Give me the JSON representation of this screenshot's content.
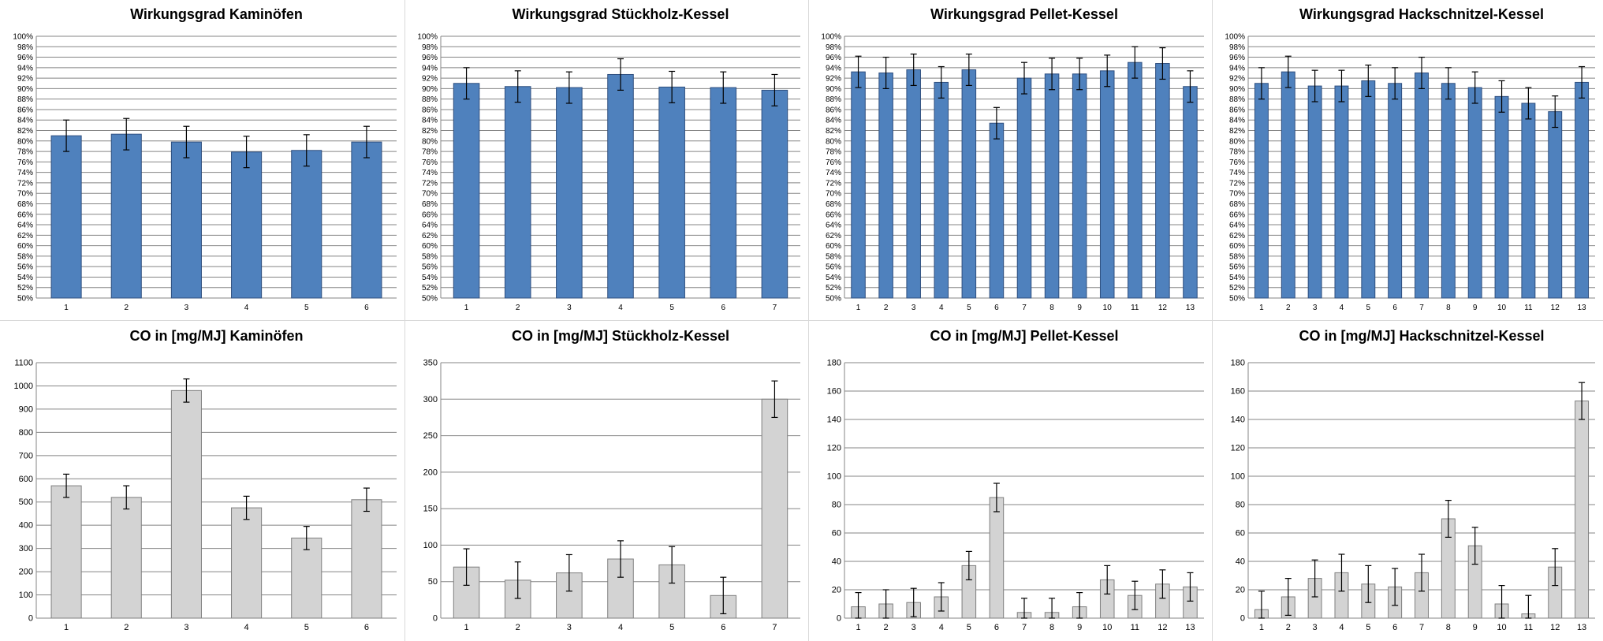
{
  "chart_data": [
    {
      "type": "bar",
      "title": "Wirkungsgrad Kaminöfen",
      "categories": [
        "1",
        "2",
        "3",
        "4",
        "5",
        "6"
      ],
      "values": [
        81,
        81.3,
        79.8,
        77.9,
        78.2,
        79.8
      ],
      "errors": [
        3,
        3,
        3,
        3,
        3,
        3
      ],
      "ylim": [
        50,
        100
      ],
      "yticks": [
        "50%",
        "52%",
        "54%",
        "56%",
        "58%",
        "60%",
        "62%",
        "64%",
        "66%",
        "68%",
        "70%",
        "72%",
        "74%",
        "76%",
        "78%",
        "80%",
        "82%",
        "84%",
        "86%",
        "88%",
        "90%",
        "92%",
        "94%",
        "96%",
        "98%",
        "100%"
      ],
      "bar_color": "#4f81bd",
      "grid": true
    },
    {
      "type": "bar",
      "title": "Wirkungsgrad Stückholz-Kessel",
      "categories": [
        "1",
        "2",
        "3",
        "4",
        "5",
        "6",
        "7"
      ],
      "values": [
        91,
        90.4,
        90.2,
        92.7,
        90.3,
        90.2,
        89.7
      ],
      "errors": [
        3,
        3,
        3,
        3,
        3,
        3,
        3
      ],
      "ylim": [
        50,
        100
      ],
      "yticks": [
        "50%",
        "52%",
        "54%",
        "56%",
        "58%",
        "60%",
        "62%",
        "64%",
        "66%",
        "68%",
        "70%",
        "72%",
        "74%",
        "76%",
        "78%",
        "80%",
        "82%",
        "84%",
        "86%",
        "88%",
        "90%",
        "92%",
        "94%",
        "96%",
        "98%",
        "100%"
      ],
      "bar_color": "#4f81bd",
      "grid": true
    },
    {
      "type": "bar",
      "title": "Wirkungsgrad Pellet-Kessel",
      "categories": [
        "1",
        "2",
        "3",
        "4",
        "5",
        "6",
        "7",
        "8",
        "9",
        "10",
        "11",
        "12",
        "13"
      ],
      "values": [
        93.2,
        93,
        93.6,
        91.2,
        93.6,
        83.4,
        92,
        92.8,
        92.8,
        93.4,
        95,
        94.8,
        90.4
      ],
      "errors": [
        3,
        3,
        3,
        3,
        3,
        3,
        3,
        3,
        3,
        3,
        3,
        3,
        3
      ],
      "ylim": [
        50,
        100
      ],
      "yticks": [
        "50%",
        "52%",
        "54%",
        "56%",
        "58%",
        "60%",
        "62%",
        "64%",
        "66%",
        "68%",
        "70%",
        "72%",
        "74%",
        "76%",
        "78%",
        "80%",
        "82%",
        "84%",
        "86%",
        "88%",
        "90%",
        "92%",
        "94%",
        "96%",
        "98%",
        "100%"
      ],
      "bar_color": "#4f81bd",
      "grid": true
    },
    {
      "type": "bar",
      "title": "Wirkungsgrad Hackschnitzel-Kessel",
      "categories": [
        "1",
        "2",
        "3",
        "4",
        "5",
        "6",
        "7",
        "8",
        "9",
        "10",
        "11",
        "12",
        "13"
      ],
      "values": [
        91,
        93.2,
        90.5,
        90.5,
        91.5,
        91,
        93,
        91,
        90.2,
        88.5,
        87.2,
        85.6,
        91.2
      ],
      "errors": [
        3,
        3,
        3,
        3,
        3,
        3,
        3,
        3,
        3,
        3,
        3,
        3,
        3
      ],
      "ylim": [
        50,
        100
      ],
      "yticks": [
        "50%",
        "52%",
        "54%",
        "56%",
        "58%",
        "60%",
        "62%",
        "64%",
        "66%",
        "68%",
        "70%",
        "72%",
        "74%",
        "76%",
        "78%",
        "80%",
        "82%",
        "84%",
        "86%",
        "88%",
        "90%",
        "92%",
        "94%",
        "96%",
        "98%",
        "100%"
      ],
      "bar_color": "#4f81bd",
      "grid": true
    },
    {
      "type": "bar",
      "title": "CO in [mg/MJ]  Kaminöfen",
      "categories": [
        "1",
        "2",
        "3",
        "4",
        "5",
        "6"
      ],
      "values": [
        570,
        520,
        980,
        475,
        345,
        510
      ],
      "errors": [
        50,
        50,
        50,
        50,
        50,
        50
      ],
      "ylim": [
        0,
        1100
      ],
      "yticks": [
        "0",
        "100",
        "200",
        "300",
        "400",
        "500",
        "600",
        "700",
        "800",
        "900",
        "1000",
        "1100"
      ],
      "bar_color": "#d3d3d3",
      "grid": true
    },
    {
      "type": "bar",
      "title": "CO in [mg/MJ]  Stückholz-Kessel",
      "categories": [
        "1",
        "2",
        "3",
        "4",
        "5",
        "6",
        "7"
      ],
      "values": [
        70,
        52,
        62,
        81,
        73,
        31,
        300
      ],
      "errors": [
        25,
        25,
        25,
        25,
        25,
        25,
        25
      ],
      "ylim": [
        0,
        350
      ],
      "yticks": [
        "0",
        "50",
        "100",
        "150",
        "200",
        "250",
        "300",
        "350"
      ],
      "bar_color": "#d3d3d3",
      "grid": true
    },
    {
      "type": "bar",
      "title": "CO in [mg/MJ]  Pellet-Kessel",
      "categories": [
        "1",
        "2",
        "3",
        "4",
        "5",
        "6",
        "7",
        "8",
        "9",
        "10",
        "11",
        "12",
        "13"
      ],
      "values": [
        8,
        10,
        11,
        15,
        37,
        85,
        4,
        4,
        8,
        27,
        16,
        24,
        22
      ],
      "errors": [
        10,
        10,
        10,
        10,
        10,
        10,
        10,
        10,
        10,
        10,
        10,
        10,
        10
      ],
      "ylim": [
        0,
        180
      ],
      "yticks": [
        "0",
        "20",
        "40",
        "60",
        "80",
        "100",
        "120",
        "140",
        "160",
        "180"
      ],
      "bar_color": "#d3d3d3",
      "grid": true
    },
    {
      "type": "bar",
      "title": "CO in [mg/MJ]  Hackschnitzel-Kessel",
      "categories": [
        "1",
        "2",
        "3",
        "4",
        "5",
        "6",
        "7",
        "8",
        "9",
        "10",
        "11",
        "12",
        "13"
      ],
      "values": [
        6,
        15,
        28,
        32,
        24,
        22,
        32,
        70,
        51,
        10,
        3,
        36,
        153
      ],
      "errors": [
        13,
        13,
        13,
        13,
        13,
        13,
        13,
        13,
        13,
        13,
        13,
        13,
        13
      ],
      "ylim": [
        0,
        180
      ],
      "yticks": [
        "0",
        "20",
        "40",
        "60",
        "80",
        "100",
        "120",
        "140",
        "160",
        "180"
      ],
      "bar_color": "#d3d3d3",
      "grid": true
    }
  ]
}
